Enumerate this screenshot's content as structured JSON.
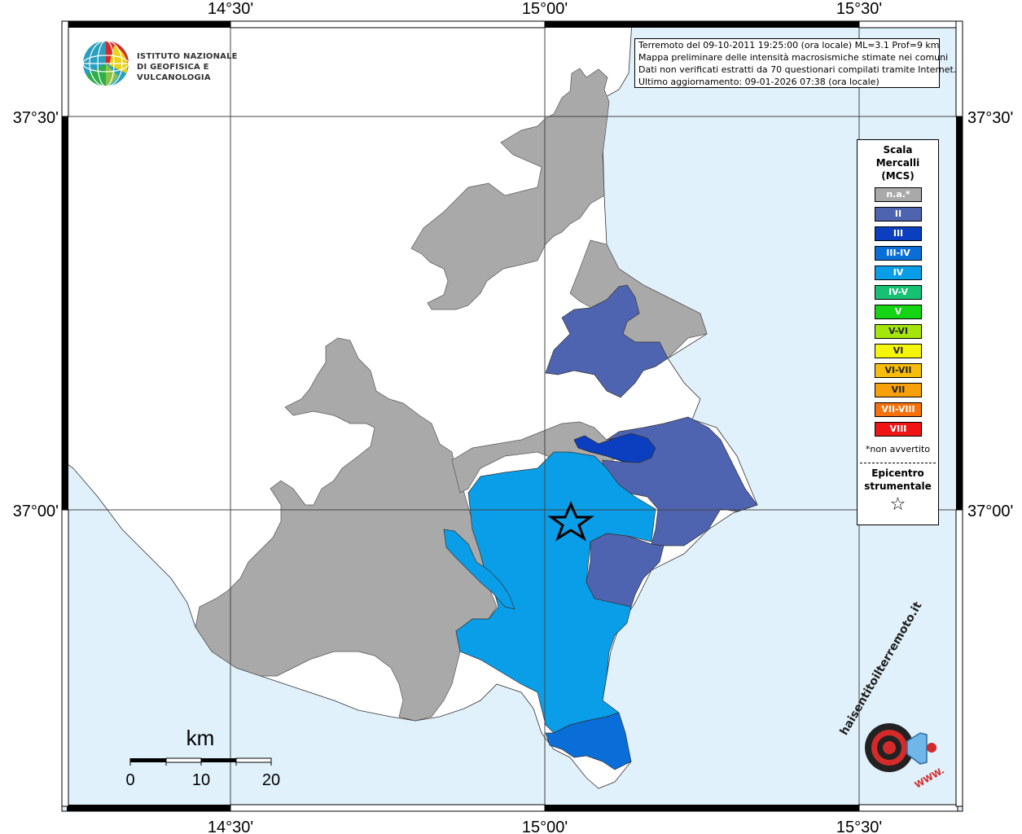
{
  "info": {
    "line1": "Terremoto del 09-10-2011 19:25:00 (ora locale) ML=3.1 Prof=9 km",
    "line2": "Mappa preliminare delle intensità macrosismiche stimate nei comuni",
    "line3": "Dati non verificati estratti da 70 questionari compilati tramite Internet.",
    "line4": "Ultimo aggiornamento: 09-01-2026 07:38 (ora locale)"
  },
  "logo": {
    "line1": "ISTITUTO NAZIONALE",
    "line2": "DI GEOFISICA E VULCANOLOGIA"
  },
  "axes": {
    "lon_ticks": [
      "14°30'",
      "15°00'",
      "15°30'"
    ],
    "lat_ticks": [
      "37°30'",
      "37°00'"
    ]
  },
  "legend": {
    "title_line1": "Scala",
    "title_line2": "Mercalli",
    "title_line3": "(MCS)",
    "classes": [
      {
        "label": "n.a.*",
        "color": "#a9a9a9"
      },
      {
        "label": "II",
        "color": "#4f64b0"
      },
      {
        "label": "III",
        "color": "#0b3fbf"
      },
      {
        "label": "III-IV",
        "color": "#0a6ed8"
      },
      {
        "label": "IV",
        "color": "#0a9ee8"
      },
      {
        "label": "IV-V",
        "color": "#17c173"
      },
      {
        "label": "V",
        "color": "#14d414"
      },
      {
        "label": "V-VI",
        "color": "#a4e60a"
      },
      {
        "label": "VI",
        "color": "#f5f50a"
      },
      {
        "label": "VI-VII",
        "color": "#f7bd0a"
      },
      {
        "label": "VII",
        "color": "#f7a00a"
      },
      {
        "label": "VII-VIII",
        "color": "#f7700a"
      },
      {
        "label": "VIII",
        "color": "#f01414"
      }
    ],
    "footnote": "*non avvertito",
    "epicenter_line1": "Epicentro",
    "epicenter_line2": "strumentale",
    "epicenter_symbol": "☆"
  },
  "scalebar": {
    "unit": "km",
    "labels": [
      "0",
      "10",
      "20"
    ]
  },
  "colors": {
    "sea": "#e1f1fb",
    "land": "#ffffff",
    "na": "#a9a9a9",
    "ii": "#4f64b0",
    "iii": "#0b3fbf",
    "iii_iv": "#0a6ed8",
    "iv": "#0a9ee8"
  },
  "watermark": {
    "text": "haisentitoilterremoto.it",
    "url": "WWW."
  }
}
